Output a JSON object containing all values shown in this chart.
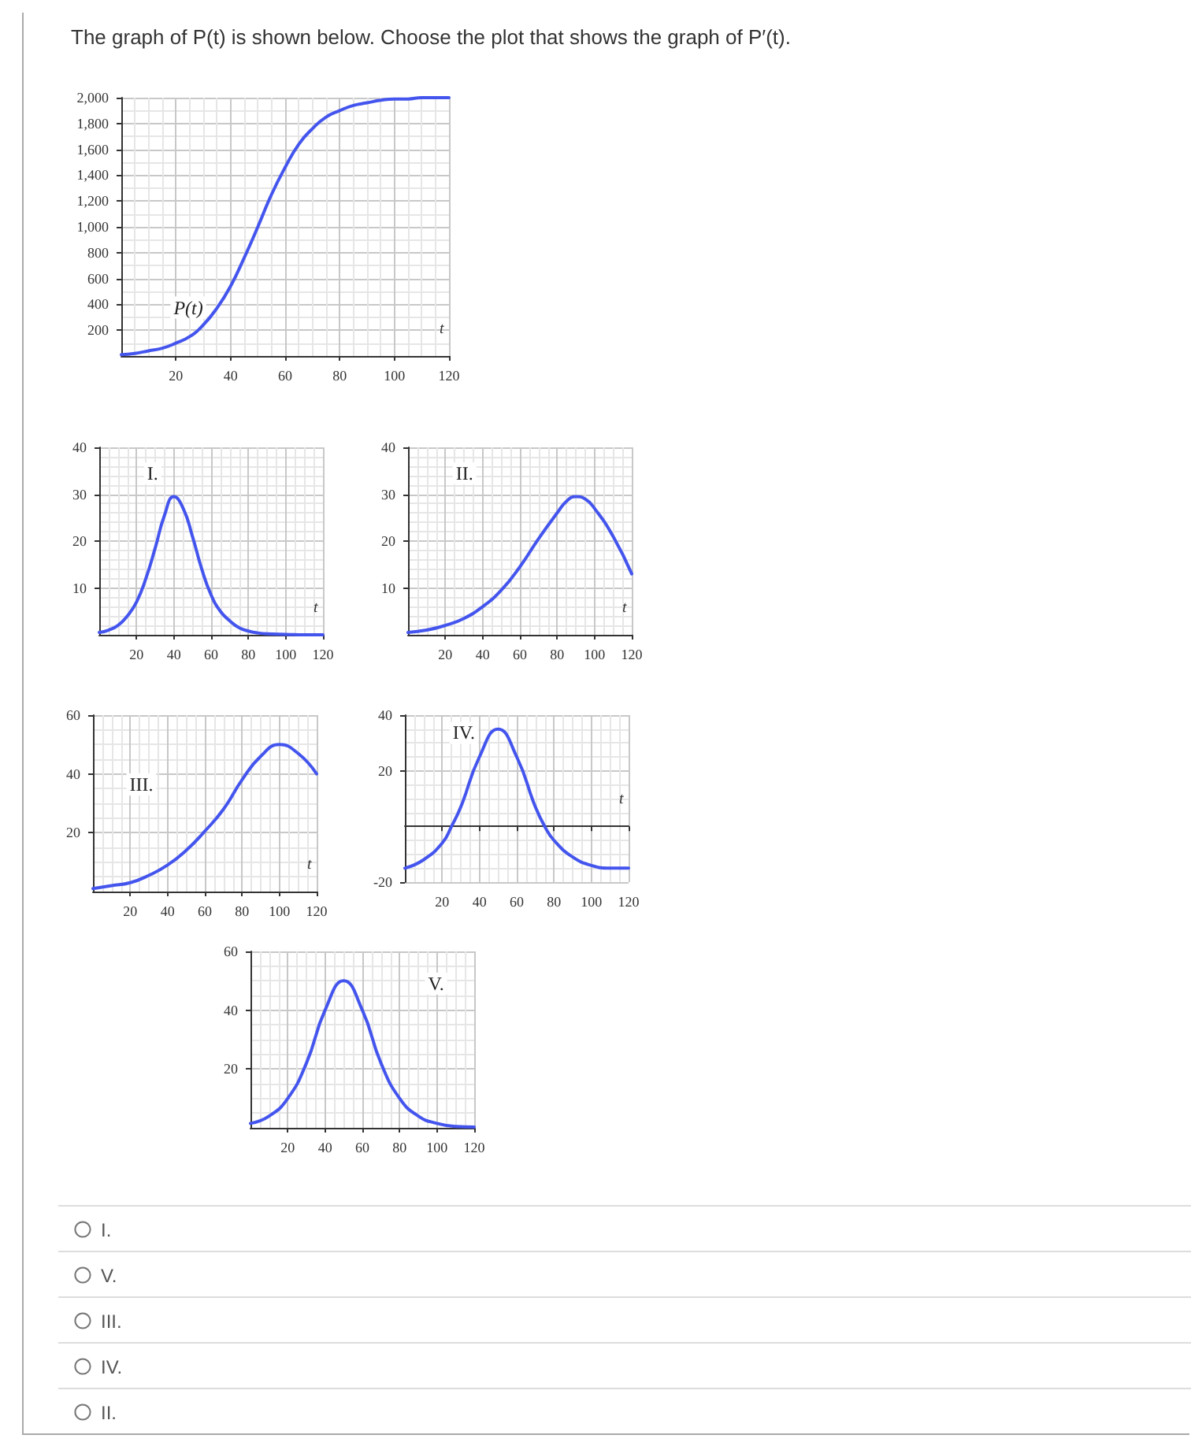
{
  "chart_data": [
    {
      "type": "line",
      "title": "The graph of P(t) is shown below. Choose the plot that shows the graph of P′(t).",
      "xlabel": "t",
      "annotations": [
        "P(t)"
      ],
      "x": [
        0,
        5,
        10,
        15,
        20,
        25,
        30,
        35,
        40,
        45,
        50,
        55,
        60,
        65,
        70,
        75,
        80,
        85,
        90,
        95,
        100,
        105,
        110,
        115,
        120
      ],
      "series": [
        {
          "color": "#4455ee",
          "values": [
            10,
            20,
            40,
            60,
            100,
            150,
            240,
            370,
            540,
            760,
            1000,
            1250,
            1460,
            1640,
            1760,
            1850,
            1900,
            1940,
            1960,
            1980,
            1990,
            1990,
            2000,
            2000,
            2000
          ]
        }
      ],
      "xlim": [
        0,
        120
      ],
      "ylim": [
        0,
        2000
      ],
      "xticks": [
        20,
        40,
        60,
        80,
        100,
        120
      ],
      "yticks": [
        200,
        400,
        600,
        800,
        {
          "value": 1000,
          "label": "1,000"
        },
        {
          "value": 1200,
          "label": "1,200"
        },
        {
          "value": 1400,
          "label": "1,400"
        },
        {
          "value": 1600,
          "label": "1,600"
        },
        {
          "value": 1800,
          "label": "1,800"
        },
        {
          "value": 2000,
          "label": "2,000"
        }
      ],
      "grid": true,
      "marker": "none",
      "line_style": "solid"
    },
    {
      "type": "line",
      "xlabel": "t",
      "annotations": [
        "I."
      ],
      "x": [
        0,
        5,
        10,
        15,
        20,
        25,
        30,
        35,
        40,
        45,
        50,
        55,
        60,
        65,
        70,
        75,
        80,
        85,
        90,
        100,
        110,
        120
      ],
      "series": [
        {
          "color": "#4455ee",
          "values": [
            0.5,
            1,
            2,
            4,
            7,
            12,
            18.5,
            25.5,
            29.5,
            27,
            21,
            14,
            8.5,
            5,
            3,
            1.5,
            0.8,
            0.4,
            0.2,
            0.1,
            0,
            0
          ]
        }
      ],
      "xlim": [
        0,
        120
      ],
      "ylim": [
        0,
        40
      ],
      "xticks": [
        20,
        40,
        60,
        80,
        100,
        120
      ],
      "yticks": [
        10,
        20,
        30,
        40
      ],
      "grid": true,
      "marker": "none",
      "line_style": "solid"
    },
    {
      "type": "line",
      "xlabel": "t",
      "annotations": [
        "II."
      ],
      "x": [
        0,
        10,
        20,
        30,
        40,
        50,
        60,
        70,
        80,
        85,
        90,
        95,
        100,
        110,
        120
      ],
      "series": [
        {
          "color": "#4455ee",
          "values": [
            0.5,
            1,
            2,
            3.5,
            6,
            9.5,
            14.5,
            20.5,
            26,
            28.5,
            29.5,
            29,
            27,
            21,
            13
          ]
        }
      ],
      "xlim": [
        0,
        120
      ],
      "ylim": [
        0,
        40
      ],
      "xticks": [
        20,
        40,
        60,
        80,
        100,
        120
      ],
      "yticks": [
        10,
        20,
        30,
        40
      ],
      "grid": true,
      "marker": "none",
      "line_style": "solid"
    },
    {
      "type": "line",
      "xlabel": "t",
      "annotations": [
        "III."
      ],
      "x": [
        0,
        10,
        20,
        30,
        40,
        50,
        60,
        70,
        80,
        90,
        100,
        110,
        120
      ],
      "series": [
        {
          "color": "#4455ee",
          "values": [
            1,
            2,
            3,
            5.5,
            9,
            14,
            20.5,
            28,
            38,
            46,
            50,
            47,
            40
          ]
        }
      ],
      "xlim": [
        0,
        120
      ],
      "ylim": [
        0,
        60
      ],
      "xticks": [
        20,
        40,
        60,
        80,
        100,
        120
      ],
      "yticks": [
        20,
        40,
        60
      ],
      "grid": true,
      "marker": "none",
      "line_style": "solid"
    },
    {
      "type": "line",
      "xlabel": "t",
      "annotations": [
        "IV."
      ],
      "x": [
        0,
        10,
        20,
        25,
        30,
        40,
        50,
        60,
        70,
        75,
        80,
        90,
        100,
        110,
        120
      ],
      "series": [
        {
          "color": "#4455ee",
          "values": [
            -15,
            -12,
            -6,
            0,
            7,
            25,
            35,
            25,
            7,
            0,
            -5,
            -11,
            -14,
            -15,
            -15
          ]
        }
      ],
      "xlim": [
        0,
        120
      ],
      "ylim": [
        -20,
        40
      ],
      "xticks": [
        20,
        40,
        60,
        80,
        100,
        120
      ],
      "yticks": [
        -20,
        20,
        40
      ],
      "grid": true,
      "marker": "none",
      "line_style": "solid"
    },
    {
      "type": "line",
      "annotations": [
        "V.",
        "I.",
        "V.",
        "III.",
        "IV.",
        "II."
      ],
      "x": [
        0,
        10,
        20,
        30,
        40,
        50,
        60,
        70,
        80,
        90,
        100,
        110,
        120
      ],
      "series": [
        {
          "color": "#4455ee",
          "values": [
            1.5,
            4,
            10,
            22,
            40,
            50,
            40,
            22,
            10,
            4,
            1.5,
            0.5,
            0.3
          ]
        }
      ],
      "xlim": [
        0,
        120
      ],
      "ylim": [
        0,
        60
      ],
      "xticks": [
        20,
        40,
        60,
        80,
        100,
        120
      ],
      "yticks": [
        20,
        40,
        60
      ],
      "grid": true,
      "marker": "none",
      "line_style": "solid"
    }
  ]
}
